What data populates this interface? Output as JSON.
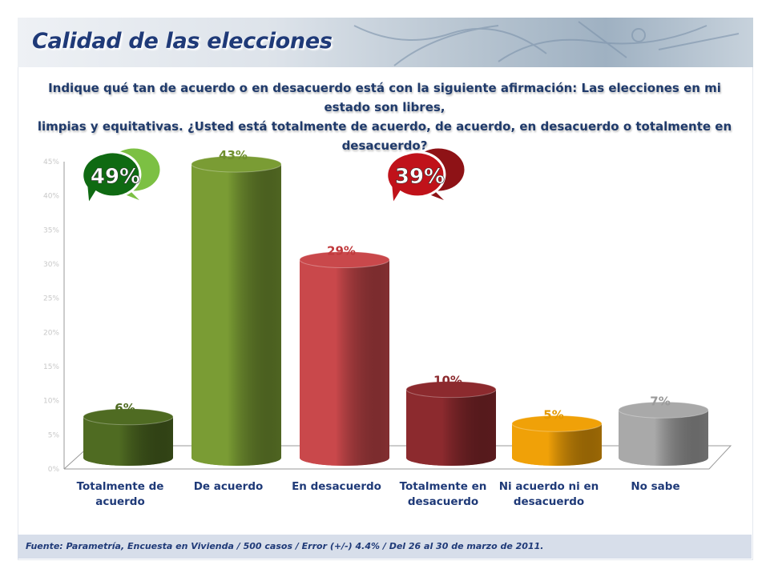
{
  "header": {
    "title": "Calidad de las elecciones"
  },
  "question": {
    "line1": "Indique qué tan de acuerdo o en desacuerdo está con la siguiente afirmación: Las elecciones en mi estado son libres,",
    "line2": "limpias y equitativas. ¿Usted está totalmente de acuerdo, de acuerdo, en desacuerdo o totalmente en desacuerdo?"
  },
  "callouts": [
    {
      "label": "49%",
      "color": "#0f6a12",
      "back_color": "#7cc043"
    },
    {
      "label": "39%",
      "color": "#c0121a",
      "back_color": "#8e1216"
    }
  ],
  "footer": {
    "source": "Fuente: Parametría, Encuesta en Vivienda / 500 casos / Error (+/-) 4.4% / Del 26 al 30 de marzo de 2011."
  },
  "chart_data": {
    "type": "bar",
    "title": "",
    "categories": [
      [
        "Totalmente de",
        "acuerdo"
      ],
      [
        "De acuerdo"
      ],
      [
        "En desacuerdo"
      ],
      [
        "Totalmente en",
        "desacuerdo"
      ],
      [
        "Ni acuerdo ni en",
        "desacuerdo"
      ],
      [
        "No sabe"
      ]
    ],
    "values": [
      6,
      43,
      29,
      10,
      5,
      7
    ],
    "value_labels": [
      "6%",
      "43%",
      "29%",
      "10%",
      "5%",
      "7%"
    ],
    "colors": [
      "#4f6b22",
      "#7a9c34",
      "#c9484b",
      "#8c2a2e",
      "#f0a108",
      "#a9a9a9"
    ],
    "label_colors": [
      "#4f6b22",
      "#6f8f2e",
      "#c0393c",
      "#8c2a2e",
      "#e59a00",
      "#9a9a9a"
    ],
    "yticks": [
      "0%",
      "5%",
      "10%",
      "15%",
      "20%",
      "25%",
      "30%",
      "35%",
      "40%",
      "45%"
    ],
    "ylim": [
      0,
      45
    ],
    "xlabel": "",
    "ylabel": ""
  }
}
